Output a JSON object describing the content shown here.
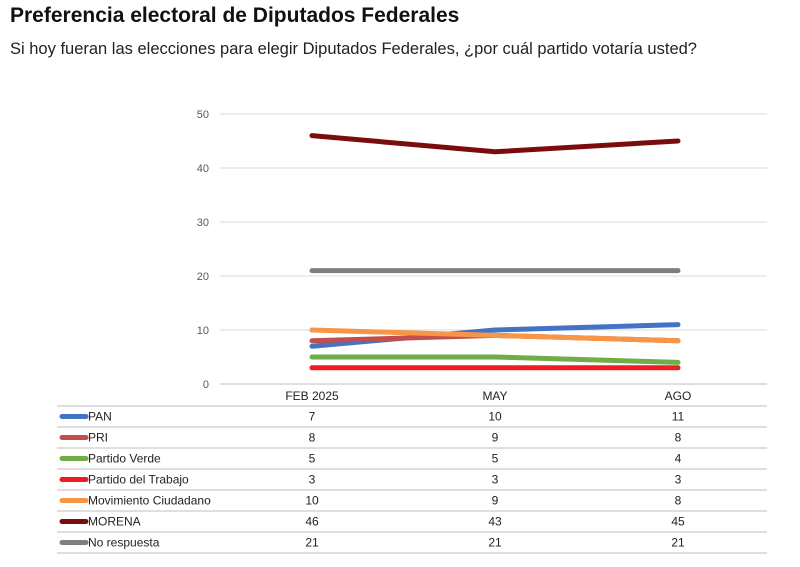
{
  "header": {
    "title": "Preferencia electoral de Diputados Federales",
    "subtitle": "Si hoy fueran las elecciones para elegir Diputados Federales, ¿por cuál partido votaría usted?"
  },
  "chart_data": {
    "type": "line",
    "categories": [
      "FEB 2025",
      "MAY",
      "AGO"
    ],
    "ylim": [
      0,
      50
    ],
    "yticks": [
      0,
      10,
      20,
      30,
      40,
      50
    ],
    "grid": true,
    "legend": "data-table-below",
    "series": [
      {
        "name": "PAN",
        "color": "#4472c4",
        "values": [
          7,
          10,
          11
        ]
      },
      {
        "name": "PRI",
        "color": "#c0504d",
        "values": [
          8,
          9,
          8
        ]
      },
      {
        "name": "Partido Verde",
        "color": "#70ad47",
        "values": [
          5,
          5,
          4
        ]
      },
      {
        "name": "Partido del Trabajo",
        "color": "#ee1d23",
        "values": [
          3,
          3,
          3
        ]
      },
      {
        "name": "Movimiento Ciudadano",
        "color": "#f79646",
        "values": [
          10,
          9,
          8
        ]
      },
      {
        "name": "MORENA",
        "color": "#7b0c0c",
        "values": [
          46,
          43,
          45
        ]
      },
      {
        "name": "No respuesta",
        "color": "#7f7f7f",
        "values": [
          21,
          21,
          21
        ]
      }
    ]
  }
}
